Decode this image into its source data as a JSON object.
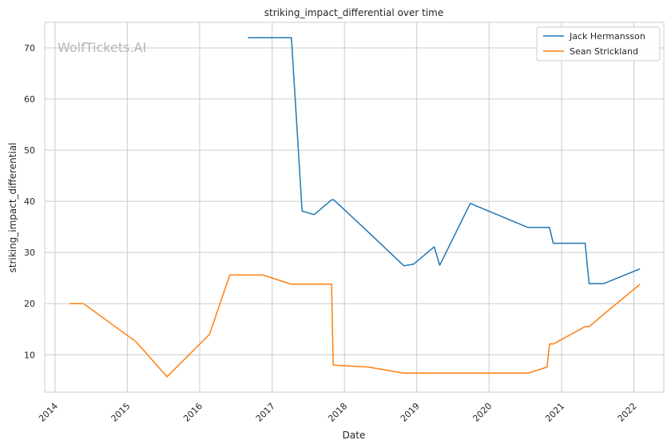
{
  "watermark": "WolfTickets.AI",
  "chart_data": {
    "type": "line",
    "title": "striking_impact_differential over time",
    "xlabel": "Date",
    "ylabel": "striking_impact_differential",
    "x_ticks": [
      "2014",
      "2015",
      "2016",
      "2017",
      "2018",
      "2019",
      "2020",
      "2021",
      "2022"
    ],
    "y_ticks": [
      10,
      20,
      30,
      40,
      50,
      60,
      70
    ],
    "xlim": [
      "2013-11-10",
      "2022-06-01"
    ],
    "ylim": [
      2.7,
      75
    ],
    "grid": true,
    "legend_position": "top-right",
    "colors": {
      "jack": "#1f77b4",
      "sean": "#ff7f0e",
      "grid": "#cccccc",
      "axes": "#cccccc"
    },
    "series": [
      {
        "name": "Jack Hermansson",
        "color": "#1f77b4",
        "points": [
          [
            "2016-09-01",
            72.0
          ],
          [
            "2017-04-08",
            72.0
          ],
          [
            "2017-06-01",
            38.1
          ],
          [
            "2017-08-01",
            37.4
          ],
          [
            "2017-10-28",
            40.3
          ],
          [
            "2017-11-08",
            40.3
          ],
          [
            "2018-05-01",
            34.0
          ],
          [
            "2018-10-28",
            27.4
          ],
          [
            "2018-12-15",
            27.7
          ],
          [
            "2019-03-30",
            31.1
          ],
          [
            "2019-04-27",
            27.5
          ],
          [
            "2019-09-28",
            39.6
          ],
          [
            "2020-07-15",
            34.9
          ],
          [
            "2020-11-01",
            34.9
          ],
          [
            "2020-11-20",
            31.8
          ],
          [
            "2021-04-30",
            31.8
          ],
          [
            "2021-05-20",
            23.9
          ],
          [
            "2021-08-01",
            23.9
          ],
          [
            "2022-02-01",
            26.8
          ]
        ]
      },
      {
        "name": "Sean Strickland",
        "color": "#ff7f0e",
        "points": [
          [
            "2014-03-15",
            20.0
          ],
          [
            "2014-05-25",
            20.0
          ],
          [
            "2015-02-15",
            12.5
          ],
          [
            "2015-07-20",
            5.7
          ],
          [
            "2016-02-20",
            14.0
          ],
          [
            "2016-06-01",
            25.6
          ],
          [
            "2016-11-15",
            25.6
          ],
          [
            "2017-04-08",
            23.8
          ],
          [
            "2017-10-28",
            23.8
          ],
          [
            "2017-11-05",
            8.0
          ],
          [
            "2018-05-01",
            7.6
          ],
          [
            "2018-10-28",
            6.4
          ],
          [
            "2020-07-15",
            6.4
          ],
          [
            "2020-10-20",
            7.6
          ],
          [
            "2020-11-01",
            12.1
          ],
          [
            "2020-11-20",
            12.1
          ],
          [
            "2021-04-30",
            15.5
          ],
          [
            "2021-05-20",
            15.5
          ],
          [
            "2021-08-01",
            17.9
          ],
          [
            "2022-02-01",
            23.8
          ]
        ]
      }
    ]
  }
}
